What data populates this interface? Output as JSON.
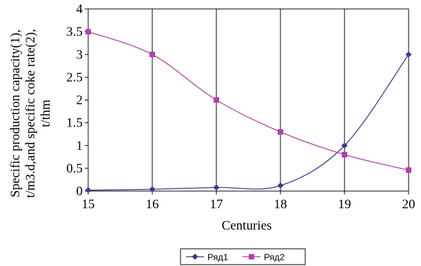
{
  "chart_data": {
    "type": "line",
    "x": [
      15,
      16,
      17,
      18,
      19,
      20
    ],
    "series": [
      {
        "name": "Ряд1",
        "values": [
          0.02,
          0.04,
          0.08,
          0.12,
          1.0,
          3.0
        ],
        "color": "#3b3b8f",
        "marker": "diamond"
      },
      {
        "name": "Ряд2",
        "values": [
          3.5,
          3.0,
          2.0,
          1.3,
          0.8,
          0.46
        ],
        "color": "#b040b0",
        "marker": "square"
      }
    ],
    "xlabel": "Centuries",
    "ylabel": [
      "Specific production capacity(1),",
      "t/m3.d,and specific coke rate(2),",
      "t/thm"
    ],
    "xlim": [
      15,
      20
    ],
    "ylim": [
      0,
      4
    ],
    "x_ticks": [
      "15",
      "16",
      "17",
      "18",
      "19",
      "20"
    ],
    "y_ticks": [
      "0",
      "0.5",
      "1",
      "1.5",
      "2",
      "2.5",
      "3",
      "3.5",
      "4"
    ],
    "grid": "vertical",
    "legend_position": "bottom"
  }
}
